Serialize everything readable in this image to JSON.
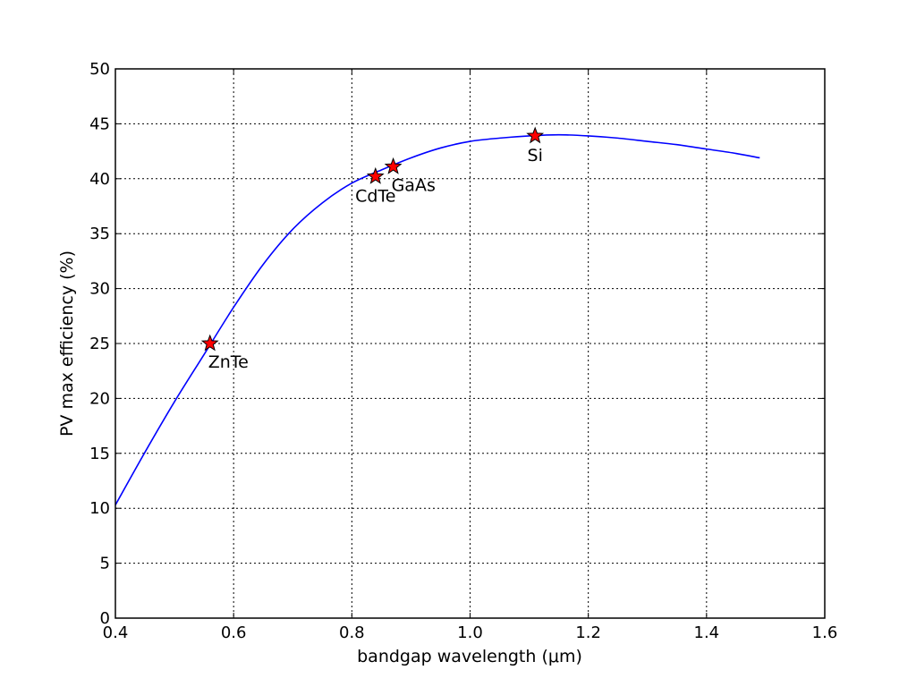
{
  "chart_data": {
    "type": "line",
    "title": "",
    "xlabel": "bandgap wavelength (μm)",
    "ylabel": "PV max efficiency (%)",
    "xlim": [
      0.4,
      1.6
    ],
    "ylim": [
      0,
      50
    ],
    "grid": true,
    "x_ticks": [
      "0.4",
      "0.6",
      "0.8",
      "1.0",
      "1.2",
      "1.4",
      "1.6"
    ],
    "y_ticks": [
      "0",
      "5",
      "10",
      "15",
      "20",
      "25",
      "30",
      "35",
      "40",
      "45",
      "50"
    ],
    "series": [
      {
        "color": "#0000ff",
        "x": [
          0.4,
          0.45,
          0.5,
          0.55,
          0.6,
          0.65,
          0.7,
          0.75,
          0.8,
          0.85,
          0.9,
          0.95,
          1.0,
          1.05,
          1.1,
          1.15,
          1.2,
          1.25,
          1.3,
          1.35,
          1.4,
          1.45,
          1.49
        ],
        "y": [
          10.3,
          15.1,
          19.7,
          24.0,
          28.3,
          32.2,
          35.4,
          37.8,
          39.6,
          40.8,
          41.9,
          42.8,
          43.4,
          43.7,
          43.9,
          44.0,
          43.9,
          43.7,
          43.4,
          43.1,
          42.7,
          42.3,
          41.9
        ]
      }
    ],
    "points": [
      {
        "label": "ZnTe",
        "x": 0.56,
        "y": 25.0,
        "label_pos": "below-right"
      },
      {
        "label": "CdTe",
        "x": 0.84,
        "y": 40.2,
        "label_pos": "below"
      },
      {
        "label": "GaAs",
        "x": 0.87,
        "y": 41.1,
        "label_pos": "below-right"
      },
      {
        "label": "Si",
        "x": 1.11,
        "y": 43.9,
        "label_pos": "below"
      }
    ],
    "marker_color": "#ff0000"
  }
}
